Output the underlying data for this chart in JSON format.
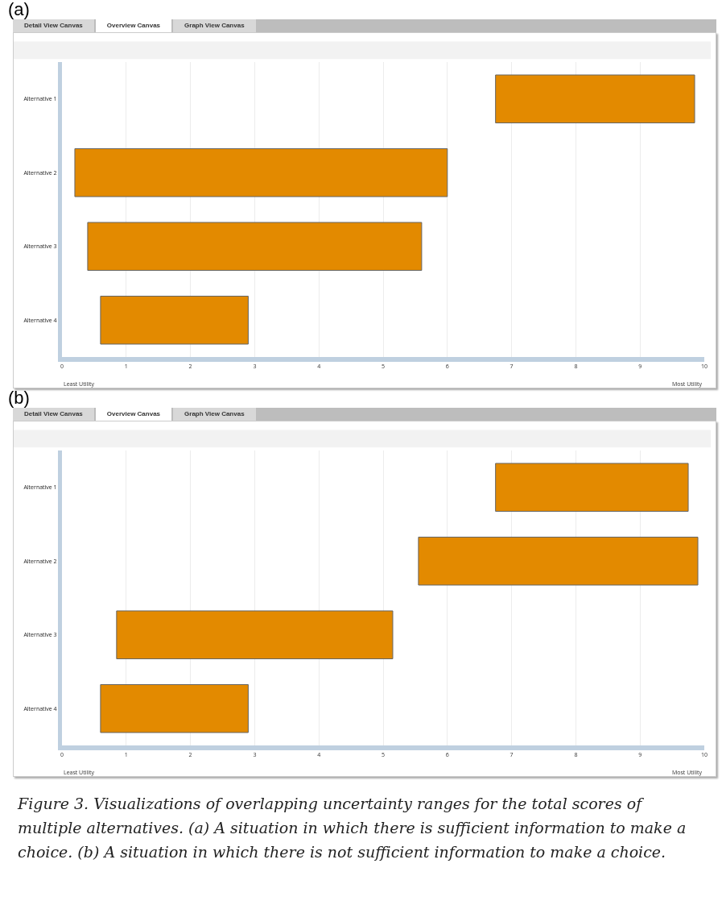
{
  "chart_data": [
    {
      "type": "bar",
      "title": "(a)",
      "orientation": "horizontal",
      "categories": [
        "Alternative 1",
        "Alternative 2",
        "Alternative 3",
        "Alternative 4"
      ],
      "base": [
        6.75,
        0.2,
        0.4,
        0.6
      ],
      "values": [
        3.1,
        5.8,
        5.2,
        2.3
      ],
      "color": "#e38a00",
      "xlim": [
        0,
        10
      ],
      "xticks": [
        0,
        1,
        2,
        3,
        4,
        5,
        6,
        7,
        8,
        9,
        10
      ],
      "grid": "x",
      "legend": false,
      "annotations": [
        "Detail View Canvas",
        "Overview Canvas",
        "Graph View Canvas",
        "Least Utility",
        "Most Utility"
      ]
    },
    {
      "type": "bar",
      "title": "(b)",
      "orientation": "horizontal",
      "categories": [
        "Alternative 1",
        "Alternative 2",
        "Alternative 3",
        "Alternative 4"
      ],
      "base": [
        6.75,
        5.55,
        0.85,
        0.6
      ],
      "values": [
        3.0,
        4.35,
        4.3,
        2.3
      ],
      "color": "#e38a00",
      "xlim": [
        0,
        10
      ],
      "xticks": [
        0,
        1,
        2,
        3,
        4,
        5,
        6,
        7,
        8,
        9,
        10
      ],
      "grid": "x",
      "legend": false,
      "annotations": [
        "Detail View Canvas",
        "Overview Canvas",
        "Graph View Canvas",
        "Least Utility",
        "Most Utility",
        "Figure 3. Visualizations of overlapping uncertainty ranges for the total scores of multiple alternatives. (a) A situation in which there is sufficient information to make a choice. (b) A situation in which there is not sufficient information to make a choice."
      ]
    }
  ]
}
